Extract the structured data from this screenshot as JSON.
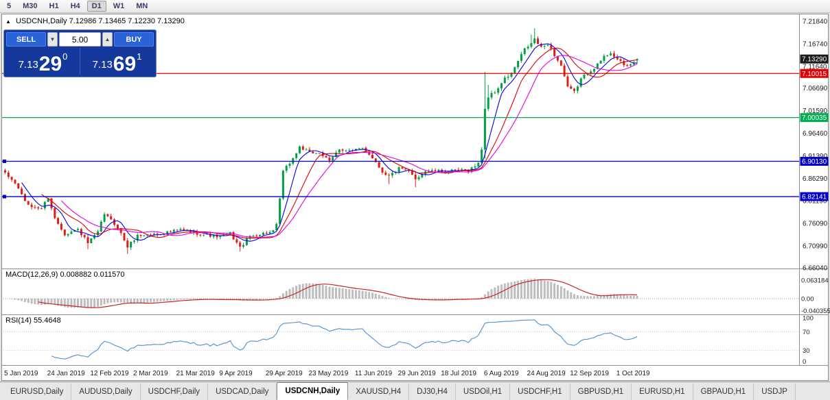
{
  "toolbar": {
    "timeframes": [
      "5",
      "M30",
      "H1",
      "H4",
      "D1",
      "W1",
      "MN"
    ],
    "active_timeframe": "D1"
  },
  "chart_header": {
    "collapse_icon": "▲",
    "title": "USDCNH,Daily 7.12986 7.13465 7.12230 7.13290"
  },
  "trade_panel": {
    "sell_label": "SELL",
    "buy_label": "BUY",
    "volume_value": "5.00",
    "volume_down_icon": "▼",
    "volume_up_icon": "▲",
    "sell_price": {
      "prefix": "7.13",
      "big": "29",
      "sup": "0"
    },
    "buy_price": {
      "prefix": "7.13",
      "big": "69",
      "sup": "1"
    }
  },
  "indicators": {
    "macd_label": "MACD(12,26,9) 0.008882 0.011570",
    "rsi_label": "RSI(14) 55.4648"
  },
  "price_axis": {
    "ticks": [
      "7.21840",
      "7.16740",
      "7.11640",
      "7.06690",
      "7.01590",
      "6.96460",
      "6.91390",
      "6.86290",
      "6.81190",
      "6.76090",
      "6.70990",
      "6.66040"
    ],
    "tags": [
      {
        "text": "7.13290",
        "color": "#1a1a1a"
      },
      {
        "text": "7.10015",
        "color": "#e60000"
      },
      {
        "text": "7.00035",
        "color": "#00b050"
      },
      {
        "text": "6.90130",
        "color": "#0000cc"
      },
      {
        "text": "6.82141",
        "color": "#0000cc"
      }
    ]
  },
  "macd_axis": [
    "0.063184",
    "0.00",
    "-0.040355"
  ],
  "rsi_axis": [
    "100",
    "70",
    "30",
    "0"
  ],
  "date_axis": [
    {
      "label": "5 Jan 2019",
      "bar": 0
    },
    {
      "label": "24 Jan 2019",
      "bar": 13
    },
    {
      "label": "12 Feb 2019",
      "bar": 26
    },
    {
      "label": "2 Mar 2019",
      "bar": 39
    },
    {
      "label": "21 Mar 2019",
      "bar": 52
    },
    {
      "label": "9 Apr 2019",
      "bar": 65
    },
    {
      "label": "29 Apr 2019",
      "bar": 79
    },
    {
      "label": "23 May 2019",
      "bar": 92
    },
    {
      "label": "11 Jun 2019",
      "bar": 106
    },
    {
      "label": "29 Jun 2019",
      "bar": 119
    },
    {
      "label": "18 Jul 2019",
      "bar": 132
    },
    {
      "label": "6 Aug 2019",
      "bar": 145
    },
    {
      "label": "24 Aug 2019",
      "bar": 158
    },
    {
      "label": "12 Sep 2019",
      "bar": 171
    },
    {
      "label": "1 Oct 2019",
      "bar": 185
    }
  ],
  "tabs": {
    "items": [
      "EURUSD,Daily",
      "AUDUSD,Daily",
      "USDCHF,Daily",
      "USDCAD,Daily",
      "USDCNH,Daily",
      "XAUUSD,H4",
      "DJ30,H4",
      "USDOil,H1",
      "USDCHF,H1",
      "GBPUSD,H1",
      "EURUSD,H1",
      "GBPAUD,H1",
      "USDJP"
    ],
    "active": "USDCNH,Daily"
  },
  "chart_data": {
    "type": "candlestick",
    "symbol": "USDCNH",
    "timeframe": "Daily",
    "bars": 192,
    "price_range": [
      6.6604,
      7.2184
    ],
    "last_bar": {
      "o": 7.12986,
      "h": 7.13465,
      "l": 7.1223,
      "c": 7.1329
    },
    "current_price": 7.1329,
    "up_color": "#00a044",
    "down_color": "#dd1e14",
    "close_anchors": [
      [
        0,
        6.873
      ],
      [
        3,
        6.852
      ],
      [
        7,
        6.8
      ],
      [
        11,
        6.795
      ],
      [
        13,
        6.82
      ],
      [
        15,
        6.772
      ],
      [
        18,
        6.737
      ],
      [
        22,
        6.747
      ],
      [
        25,
        6.716
      ],
      [
        28,
        6.74
      ],
      [
        30,
        6.783
      ],
      [
        34,
        6.752
      ],
      [
        37,
        6.708
      ],
      [
        40,
        6.733
      ],
      [
        46,
        6.737
      ],
      [
        53,
        6.746
      ],
      [
        59,
        6.737
      ],
      [
        65,
        6.73
      ],
      [
        68,
        6.738
      ],
      [
        71,
        6.706
      ],
      [
        74,
        6.732
      ],
      [
        81,
        6.742
      ],
      [
        82,
        6.756
      ],
      [
        84,
        6.878
      ],
      [
        87,
        6.908
      ],
      [
        89,
        6.934
      ],
      [
        92,
        6.92
      ],
      [
        95,
        6.921
      ],
      [
        98,
        6.9
      ],
      [
        101,
        6.93
      ],
      [
        105,
        6.924
      ],
      [
        108,
        6.932
      ],
      [
        111,
        6.91
      ],
      [
        114,
        6.878
      ],
      [
        116,
        6.868
      ],
      [
        119,
        6.885
      ],
      [
        122,
        6.878
      ],
      [
        124,
        6.862
      ],
      [
        127,
        6.879
      ],
      [
        134,
        6.879
      ],
      [
        140,
        6.881
      ],
      [
        143,
        6.896
      ],
      [
        144,
        6.93
      ],
      [
        145,
        7.02
      ],
      [
        146,
        7.048
      ],
      [
        148,
        7.058
      ],
      [
        151,
        7.088
      ],
      [
        153,
        7.1
      ],
      [
        155,
        7.128
      ],
      [
        157,
        7.155
      ],
      [
        159,
        7.168
      ],
      [
        160,
        7.178
      ],
      [
        162,
        7.158
      ],
      [
        164,
        7.168
      ],
      [
        166,
        7.142
      ],
      [
        168,
        7.118
      ],
      [
        170,
        7.068
      ],
      [
        172,
        7.058
      ],
      [
        174,
        7.088
      ],
      [
        177,
        7.108
      ],
      [
        179,
        7.12
      ],
      [
        181,
        7.138
      ],
      [
        183,
        7.148
      ],
      [
        185,
        7.132
      ],
      [
        187,
        7.118
      ],
      [
        189,
        7.12
      ],
      [
        191,
        7.1329
      ]
    ],
    "wick_boosts": [
      [
        25,
        0,
        0.01
      ],
      [
        37,
        0,
        0.012
      ],
      [
        71,
        0,
        0.01
      ],
      [
        116,
        0,
        0.018
      ],
      [
        124,
        0,
        0.014
      ],
      [
        145,
        0.08,
        0.02
      ],
      [
        146,
        0.025,
        0
      ],
      [
        159,
        0.015,
        0
      ],
      [
        160,
        0.02,
        0
      ]
    ],
    "hlines": [
      {
        "price": 7.10015,
        "color": "#e60000",
        "handles": false
      },
      {
        "price": 7.00035,
        "color": "#00b050",
        "handles": false
      },
      {
        "price": 6.9013,
        "color": "#0000cc",
        "handles": true
      },
      {
        "price": 6.82141,
        "color": "#0000cc",
        "handles": true
      }
    ],
    "ma": [
      {
        "period": 6,
        "color": "#0000ee"
      },
      {
        "period": 12,
        "color": "#e00000"
      },
      {
        "period": 18,
        "color": "#e600e6"
      }
    ],
    "macd": {
      "fast": 12,
      "slow": 26,
      "signal": 9,
      "value": 0.008882,
      "signal_value": 0.01157,
      "hist_color": "#bdbdbd",
      "signal_color": "#cc2222"
    },
    "rsi": {
      "period": 14,
      "value": 55.4648,
      "color": "#4a90d2",
      "levels": [
        70,
        30
      ]
    }
  }
}
